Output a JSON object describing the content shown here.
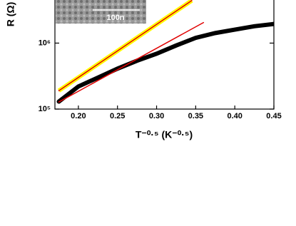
{
  "chart_data": {
    "type": "line",
    "y_label": "R (Ω)",
    "x_label": "T⁻⁰·⁵ (K⁻⁰·⁵)",
    "annotations": [
      "100n"
    ],
    "log_y": true,
    "xlim": [
      0.17,
      0.45
    ],
    "xticks": [
      {
        "value": 0.2,
        "label": "0.20"
      },
      0.25,
      {
        "value": 0.3,
        "label": "0.30"
      },
      0.35,
      {
        "value": 0.4,
        "label": "0.40"
      },
      0.45
    ],
    "ylim": [
      100000,
      4500000
    ],
    "yticks": [
      {
        "value": 100000,
        "label": "10⁵"
      },
      {
        "value": 1000000,
        "label": "10⁶"
      }
    ],
    "series": [
      {
        "color": "#000000",
        "width": 6,
        "x": [
          0.175,
          0.2,
          0.225,
          0.25,
          0.275,
          0.3,
          0.325,
          0.35,
          0.375,
          0.4,
          0.425,
          0.45
        ],
        "values": [
          130000,
          220000,
          300000,
          410000,
          540000,
          690000,
          920000,
          1200000,
          1420000,
          1600000,
          1800000,
          1950000
        ]
      },
      {
        "color": "#e00000",
        "width": 1.5,
        "x": [
          0.175,
          0.36
        ],
        "values": [
          128000,
          2050000
        ]
      },
      {
        "color": "#e00000",
        "outline": "#ffff00",
        "width": 1.5,
        "x": [
          0.175,
          0.345
        ],
        "values": [
          190000,
          4420000
        ]
      }
    ]
  }
}
